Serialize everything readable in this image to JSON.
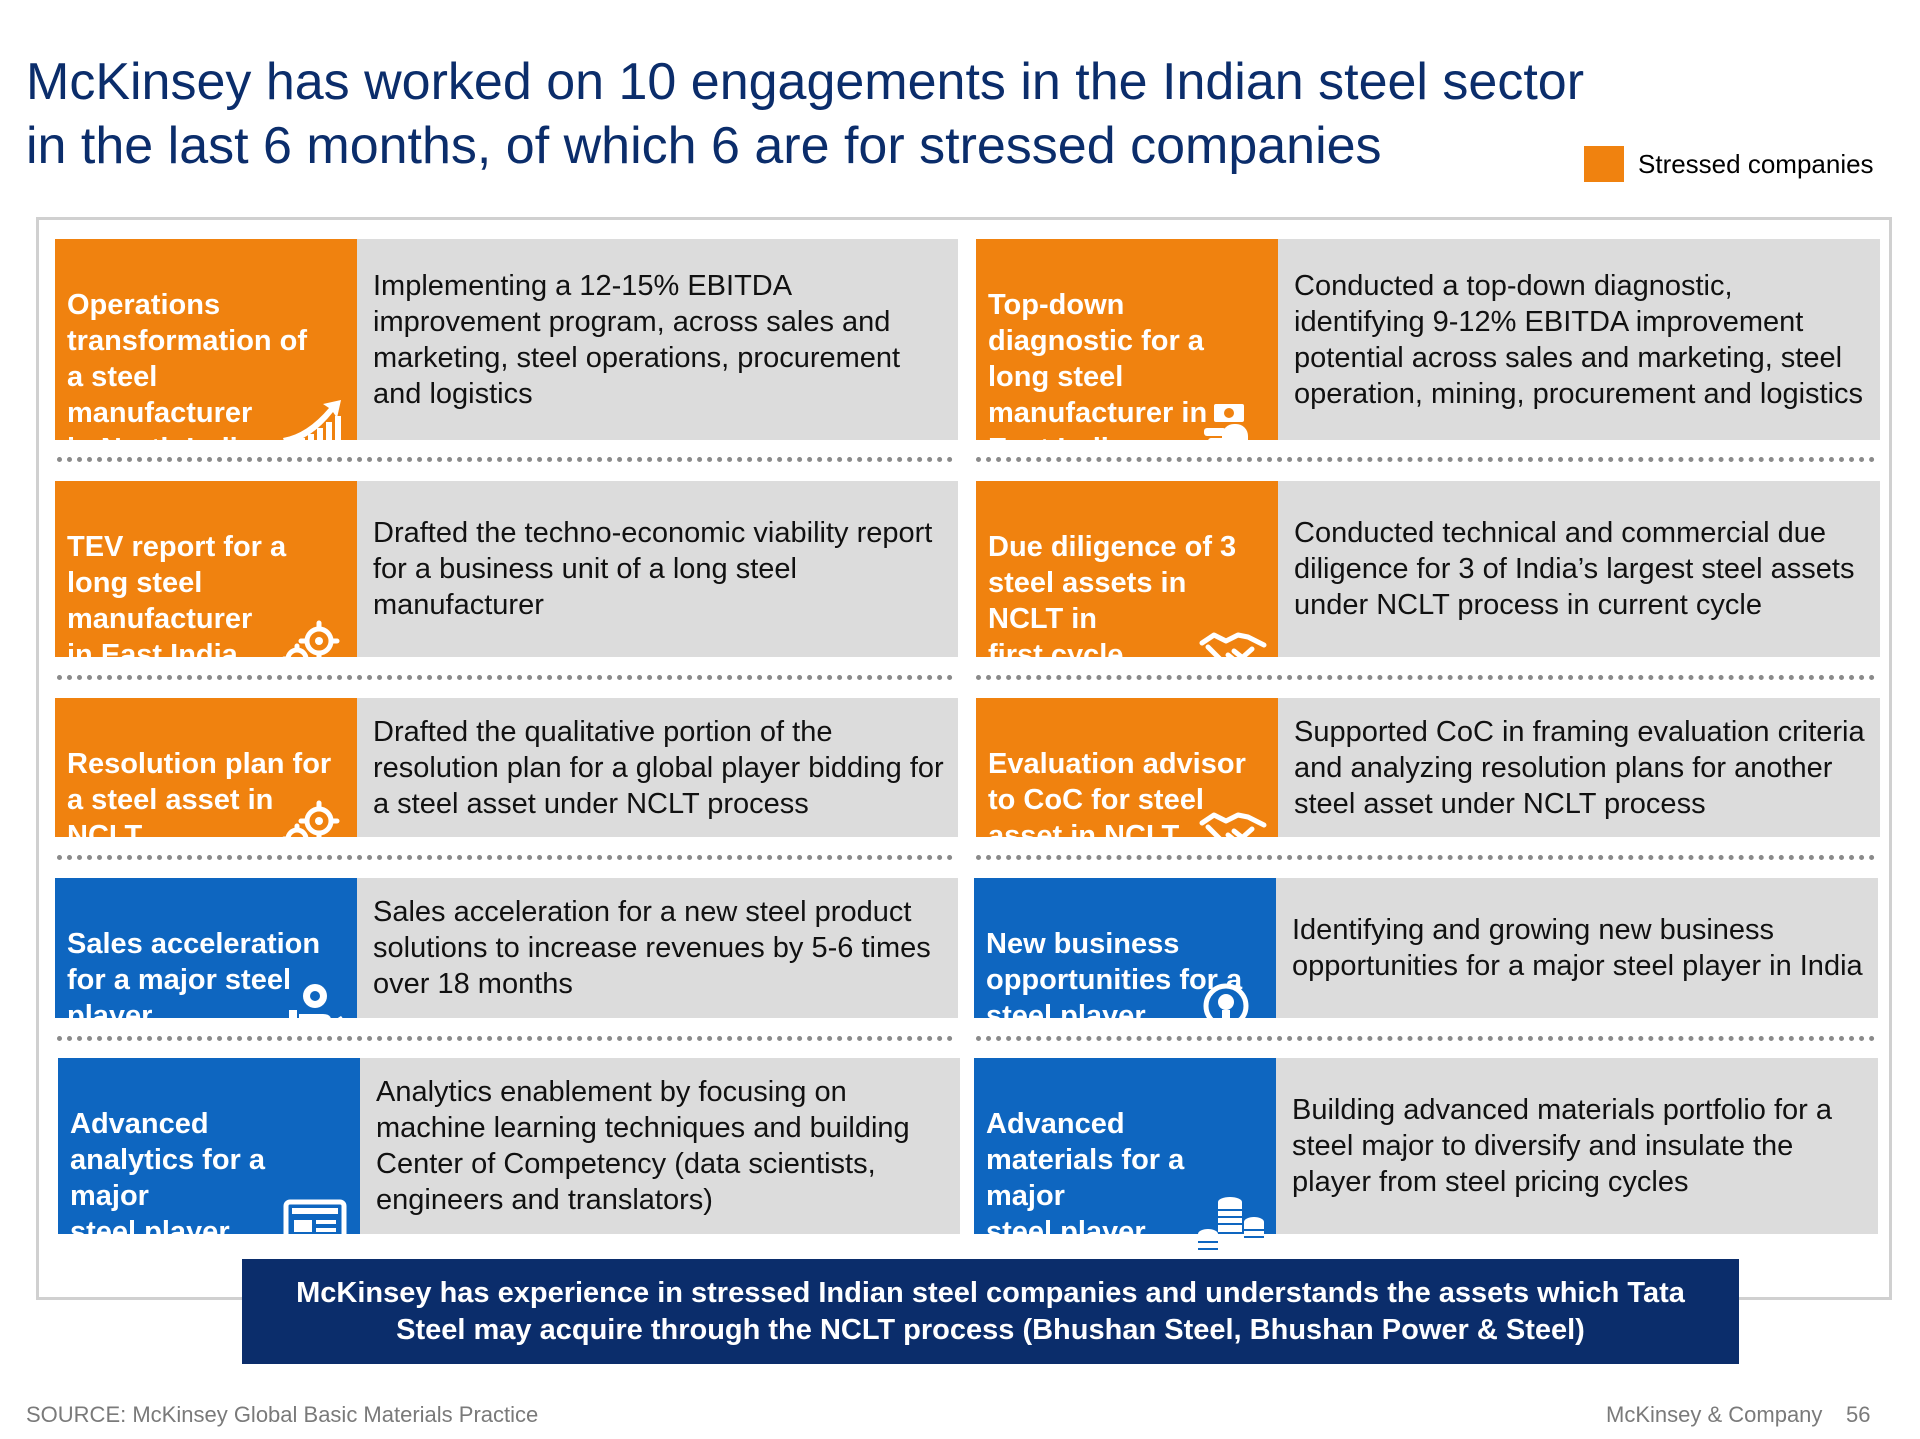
{
  "title": "McKinsey has worked on 10 engagements in the Indian steel sector in the last 6 months, of which 6 are for stressed companies",
  "legend": {
    "label": "Stressed companies",
    "color": "#f0820f"
  },
  "cards": [
    {
      "title": "Operations\ntransformation of\na steel\nmanufacturer\nin North India",
      "description": "Implementing a 12-15% EBITDA improvement program, across sales and marketing, steel operations, procurement and logistics",
      "stressed": true,
      "icon": "growth-chart-icon"
    },
    {
      "title": "Top-down\ndiagnostic for a\nlong steel\nmanufacturer in\nEast India",
      "description": "Conducted a top-down diagnostic, identifying 9-12% EBITDA improvement potential across sales and marketing, steel operation, mining, procurement and logistics",
      "stressed": true,
      "icon": "hand-money-icon"
    },
    {
      "title": "TEV report for a\nlong steel\nmanufacturer\nin East India",
      "description": "Drafted the techno-economic viability report for a business unit of a long steel manufacturer",
      "stressed": true,
      "icon": "gears-icon"
    },
    {
      "title": "Due diligence of 3\nsteel assets in\nNCLT in\nfirst cycle",
      "description": "Conducted technical and commercial due diligence for 3 of India’s largest steel assets under NCLT process in current cycle",
      "stressed": true,
      "icon": "handshake-icon"
    },
    {
      "title": "Resolution plan for\na steel asset in\nNCLT",
      "description": "Drafted the qualitative portion of the resolution plan for a global player bidding for a steel asset under NCLT process",
      "stressed": true,
      "icon": "gears-icon"
    },
    {
      "title": "Evaluation advisor\nto CoC for steel\nasset in NCLT",
      "description": "Supported CoC in framing evaluation criteria and analyzing resolution plans for another steel asset under NCLT process",
      "stressed": true,
      "icon": "handshake-icon"
    },
    {
      "title": "Sales acceleration\nfor a major steel\nplayer",
      "description": "Sales acceleration for a new steel product solutions to increase revenues by 5-6 times over 18 months",
      "stressed": false,
      "icon": "hand-coin-icon"
    },
    {
      "title": "New business\nopportunities for a\nsteel player",
      "description": "Identifying and growing new business opportunities for a major steel player in India",
      "stressed": false,
      "icon": "search-bulb-icon"
    },
    {
      "title": "Advanced\nanalytics for a\nmajor\nsteel player",
      "description": "Analytics enablement by focusing on machine learning techniques and building Center of Competency (data scientists, engineers and translators)",
      "stressed": false,
      "icon": "dashboard-icon"
    },
    {
      "title": "Advanced\nmaterials for a\nmajor\nsteel player",
      "description": "Building advanced materials portfolio for a steel major to diversify and insulate the player from steel pricing cycles",
      "stressed": false,
      "icon": "coin-stacks-icon"
    }
  ],
  "banner": "McKinsey has experience in stressed Indian steel companies and understands the assets which Tata Steel may acquire through the NCLT process (Bhushan Steel, Bhushan Power & Steel)",
  "footer": {
    "source": "SOURCE: McKinsey Global Basic Materials Practice",
    "company": "McKinsey & Company",
    "page": "56"
  }
}
